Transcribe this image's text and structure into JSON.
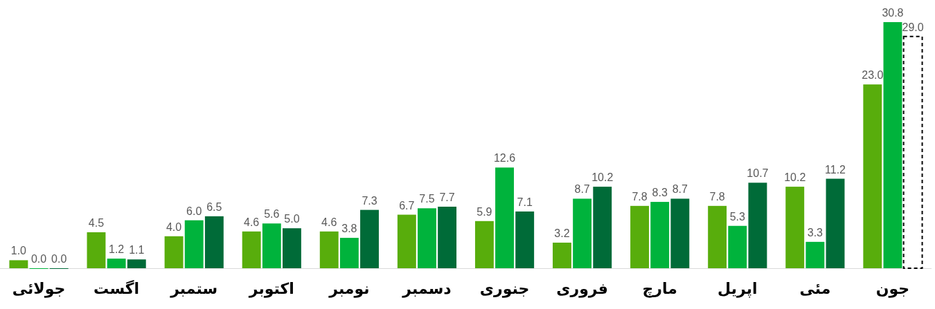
{
  "chart_data": {
    "type": "bar",
    "categories": [
      "جولائی",
      "اگست",
      "ستمبر",
      "اکتوبر",
      "نومبر",
      "دسمبر",
      "جنوری",
      "فروری",
      "مارچ",
      "اپریل",
      "مئی",
      "جون"
    ],
    "series": [
      {
        "color": "#58ad0c",
        "values": [
          1.0,
          4.5,
          4.0,
          4.6,
          4.6,
          6.7,
          5.9,
          3.2,
          7.8,
          7.8,
          10.2,
          23.0
        ],
        "value_labels": [
          "1.0",
          "4.5",
          "4.0",
          "4.6",
          "4.6",
          "6.7",
          "5.9",
          "3.2",
          "7.8",
          "7.8",
          "10.2",
          "23.0"
        ]
      },
      {
        "color": "#00b33c",
        "values": [
          0.0,
          1.2,
          6.0,
          5.6,
          3.8,
          7.5,
          12.6,
          8.7,
          8.3,
          5.3,
          3.3,
          30.8
        ],
        "value_labels": [
          "0.0",
          "1.2",
          "6.0",
          "5.6",
          "3.8",
          "7.5",
          "12.6",
          "8.7",
          "8.3",
          "5.3",
          "3.3",
          "30.8"
        ]
      },
      {
        "colors": [
          "#006b38",
          "#006b38",
          "#006b38",
          "#006b38",
          "#006b38",
          "#006b38",
          "#006b38",
          "#006b38",
          "#006b38",
          "#006b38",
          "#006b38",
          "#ffffff"
        ],
        "values": [
          0.0,
          1.1,
          6.5,
          5.0,
          7.3,
          7.7,
          7.1,
          10.2,
          8.7,
          10.7,
          11.2,
          29.0
        ],
        "value_labels": [
          "0.0",
          "1.1",
          "6.5",
          "5.0",
          "7.3",
          "7.7",
          "7.1",
          "10.2",
          "8.7",
          "10.7",
          "11.2",
          "29.0"
        ]
      }
    ]
  }
}
